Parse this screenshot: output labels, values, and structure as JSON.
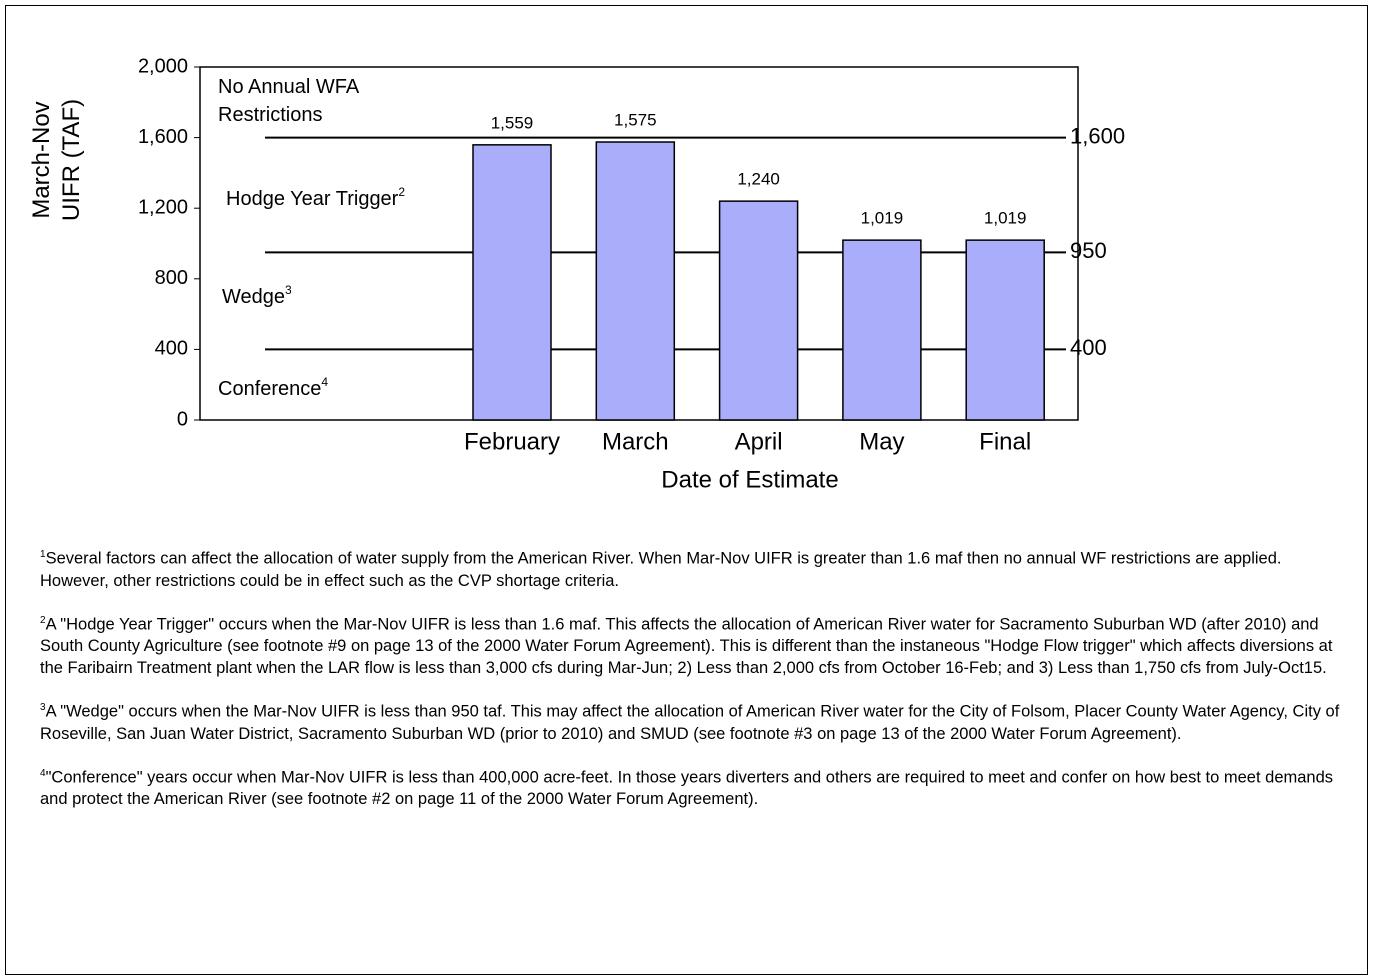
{
  "chart_data": {
    "type": "bar",
    "y_label": [
      "March-Nov",
      "UIFR (TAF)"
    ],
    "x_label": "Date of Estimate",
    "categories": [
      "February",
      "March",
      "April",
      "May",
      "Final"
    ],
    "values": [
      1559,
      1575,
      1240,
      1019,
      1019
    ],
    "value_labels": [
      "1,559",
      "1,575",
      "1,240",
      "1,019",
      "1,019"
    ],
    "color": "#a9adfa",
    "ylim": [
      0,
      2000
    ],
    "yticks": [
      0,
      400,
      800,
      {
        "value": 1200,
        "label": "1,200"
      },
      {
        "value": 1600,
        "label": "1,600"
      },
      {
        "value": 2000,
        "label": "2,000"
      }
    ],
    "thresholds": [
      {
        "value": 1600,
        "label": "1,600"
      },
      {
        "value": 950,
        "label": "950"
      },
      {
        "value": 400,
        "label": "400"
      }
    ],
    "zones": [
      {
        "lines": [
          "No  Annual WFA",
          "Restrictions"
        ]
      },
      {
        "lines": [
          "Hodge Year Trigger"
        ],
        "note": "2"
      },
      {
        "lines": [
          "Wedge"
        ],
        "note": "3"
      },
      {
        "lines": [
          "Conference"
        ],
        "note": "4"
      }
    ]
  },
  "footnotes": [
    {
      "mark": "1",
      "text": "Several factors can affect the allocation of water supply from the American River.  When Mar-Nov UIFR is greater than 1.6 maf then no annual WF restrictions are applied.  However, other restrictions could be in effect such as the CVP shortage criteria."
    },
    {
      "mark": "2",
      "text": "A \"Hodge Year Trigger\" occurs when the Mar-Nov UIFR is less than 1.6 maf.  This affects the allocation of American River water for Sacramento Suburban WD (after 2010) and South County Agriculture (see footnote #9 on page 13 of the 2000 Water Forum Agreement).  This is different than the instaneous \"Hodge Flow trigger\" which affects diversions at the Faribairn Treatment plant when the LAR flow is less than 3,000 cfs during Mar-Jun; 2) Less than 2,000 cfs from October 16-Feb; and 3) Less than 1,750 cfs from July-Oct15."
    },
    {
      "mark": "3",
      "text": "A \"Wedge\" occurs when the Mar-Nov UIFR is less than 950 taf.  This may affect the allocation of American River water for the City of Folsom, Placer County Water Agency, City of Roseville, San Juan Water District, Sacramento Suburban WD (prior to 2010) and SMUD (see footnote #3 on page 13 of the 2000 Water Forum Agreement)."
    },
    {
      "mark": "4",
      "text": "\"Conference\" years occur when Mar-Nov UIFR is less than 400,000 acre-feet. In those years diverters and others are required to meet and confer on how best to meet demands and protect the American River (see footnote #2 on page 11 of the 2000 Water Forum Agreement)."
    }
  ]
}
